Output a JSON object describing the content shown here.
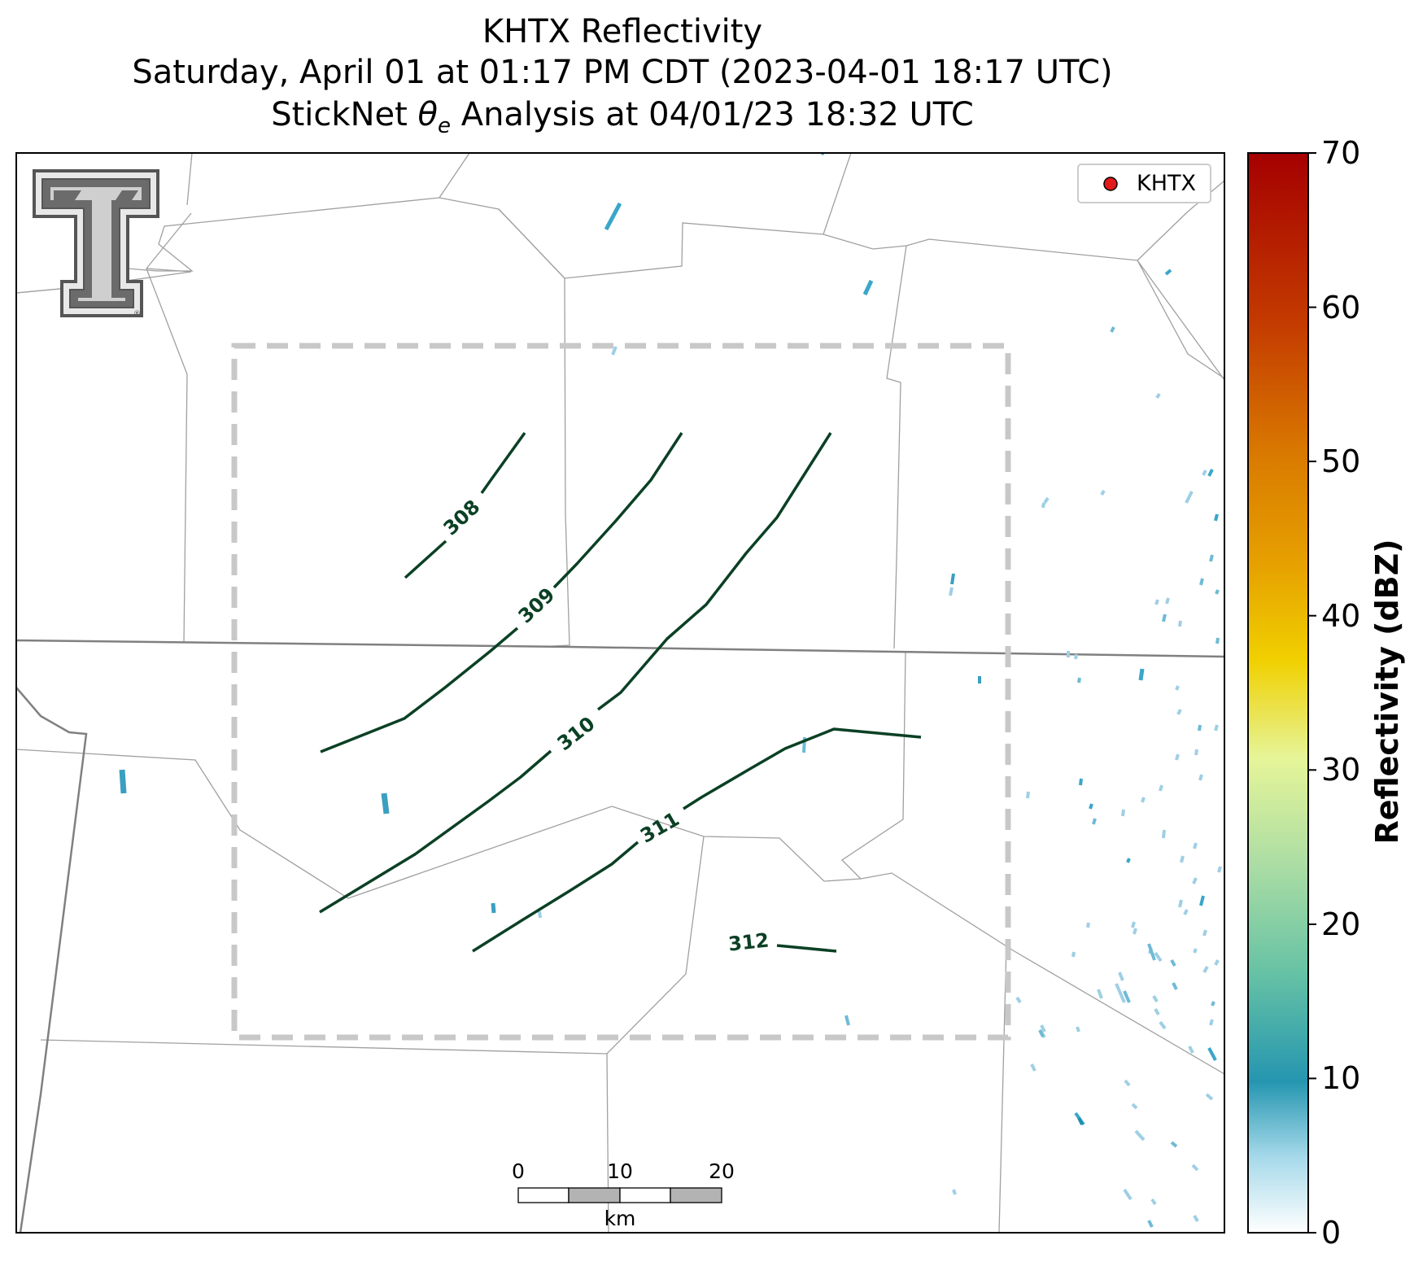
{
  "title": {
    "line1": "KHTX Reflectivity",
    "line2": "Saturday, April 01 at 01:17 PM CDT (2023-04-01 18:17 UTC)",
    "line3_prefix": "StickNet ",
    "line3_symbol": "θ",
    "line3_subscript": "e",
    "line3_suffix": " Analysis at 04/01/23 18:32 UTC"
  },
  "legend": {
    "label": "KHTX",
    "marker_color": "#e31a1c"
  },
  "colorbar": {
    "label": "Reflectivity (dBZ)",
    "ticks": [
      "0",
      "10",
      "20",
      "30",
      "40",
      "50",
      "60",
      "70"
    ],
    "range": [
      0,
      70
    ],
    "stops": [
      "#ffffff",
      "#a6d9ea",
      "#2596b0",
      "#66c2a5",
      "#abdda4",
      "#e6f598",
      "#fee08b",
      "#e8b000",
      "#d97a00",
      "#c43c00",
      "#a50000"
    ]
  },
  "contours": {
    "color": "#0b4024",
    "labels": [
      "308",
      "309",
      "310",
      "311",
      "312"
    ]
  },
  "scale_bar": {
    "ticks": [
      "0",
      "10",
      "20"
    ],
    "unit": "km"
  },
  "logo": {
    "name": "Texas Tech Double T"
  }
}
